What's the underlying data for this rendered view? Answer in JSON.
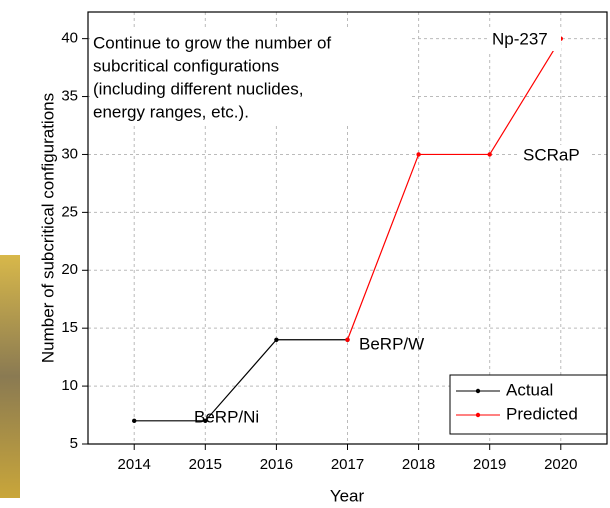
{
  "chart_data": {
    "type": "line",
    "x_label": "Year",
    "y_label": "Number of subcritical configurations",
    "xlim": [
      2013.35,
      2020.65
    ],
    "xticks": [
      2014,
      2015,
      2016,
      2017,
      2018,
      2019,
      2020
    ],
    "ylim": [
      5,
      42.3
    ],
    "yticks": [
      5,
      10,
      15,
      20,
      25,
      30,
      35,
      40
    ],
    "grid": true,
    "legend_position": "lower right",
    "series": [
      {
        "name": "Actual",
        "color": "#000000",
        "x": [
          2014,
          2015,
          2016,
          2017
        ],
        "values": [
          7,
          7,
          14,
          14
        ]
      },
      {
        "name": "Predicted",
        "color": "#ff0000",
        "x": [
          2017,
          2018,
          2019,
          2020
        ],
        "values": [
          14,
          30,
          30,
          40
        ]
      }
    ],
    "annotations": [
      "BeRP/Ni",
      "BeRP/W",
      "SCRaP",
      "Np-237"
    ],
    "note_lines": [
      "Continue to grow the number of",
      "subcritical configurations",
      "(including different nuclides,",
      "energy ranges, etc.)."
    ]
  }
}
